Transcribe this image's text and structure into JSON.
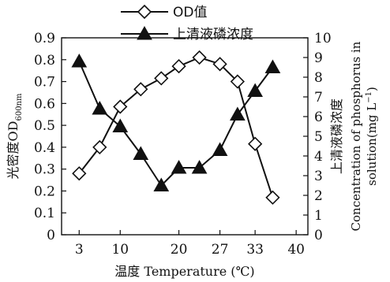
{
  "chart_data": {
    "type": "line",
    "x": [
      3,
      6.5,
      10,
      13.5,
      17,
      20,
      23.5,
      27,
      30,
      33,
      36,
      39.5
    ],
    "xlim": [
      0,
      42
    ],
    "x_ticks": [
      "3",
      "10",
      "20",
      "27",
      "33",
      "40"
    ],
    "x_tick_values": [
      3,
      10,
      20,
      27,
      33,
      40
    ],
    "xlabel": "温度 Temperature (℃)",
    "ylim_left": [
      0,
      0.9
    ],
    "y_ticks_left": [
      "0",
      "0.1",
      "0.2",
      "0.3",
      "0.4",
      "0.5",
      "0.6",
      "0.7",
      "0.8",
      "0.9"
    ],
    "ylabel_left": {
      "main": "光密度OD",
      "subscript": "600nm"
    },
    "ylim_right": [
      0,
      10
    ],
    "y_ticks_right": [
      "0",
      "1",
      "2",
      "3",
      "4",
      "5",
      "6",
      "7",
      "8",
      "9",
      "10"
    ],
    "ylabel_right_cn": "上清液磷浓度",
    "ylabel_right_en_line1": "Concentration of phosphorus in",
    "ylabel_right_en_line2": "solution(mg L",
    "ylabel_right_en_sup": "−1",
    "ylabel_right_en_close": ")",
    "legend_position": "top",
    "series": [
      {
        "name": "OD值",
        "axis": "left",
        "marker": "diamond",
        "color": "#111111",
        "values": [
          0.28,
          0.4,
          0.585,
          0.665,
          0.715,
          0.77,
          0.81,
          0.78,
          0.7,
          0.415,
          0.17,
          null
        ]
      },
      {
        "name": "上清液磷浓度",
        "axis": "right",
        "marker": "triangle",
        "color": "#111111",
        "values": [
          8.8,
          6.4,
          5.5,
          4.1,
          2.5,
          3.4,
          3.4,
          4.3,
          6.1,
          7.3,
          8.5,
          null
        ]
      }
    ]
  }
}
